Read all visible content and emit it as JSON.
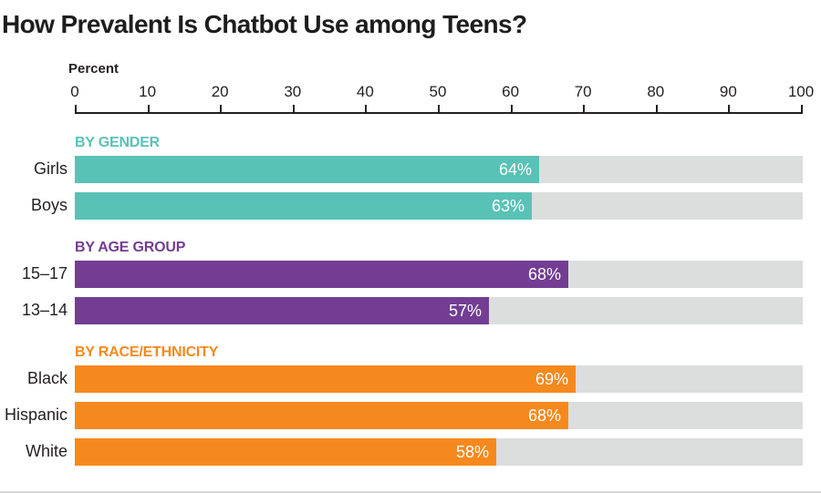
{
  "title": "How Prevalent Is Chatbot Use among Teens?",
  "colors": {
    "teal": "#59c2b6",
    "purple": "#733d93",
    "orange": "#f6891e",
    "track_gray": "#dcdddd",
    "axis_dark": "#231f20",
    "value_text": "#ffffff"
  },
  "chart_data": {
    "type": "bar",
    "orientation": "horizontal",
    "title": "How Prevalent Is Chatbot Use among Teens?",
    "xlabel": "Percent",
    "ylabel": "",
    "xlim": [
      0,
      100
    ],
    "tick_labels": [
      "0",
      "10",
      "20",
      "30",
      "40",
      "50",
      "60",
      "70",
      "80",
      "90",
      "100"
    ],
    "grid": false,
    "legend": false,
    "groups": [
      {
        "header": "BY GENDER",
        "color": "#59c2b6",
        "bars": [
          {
            "label": "Girls",
            "value": 64,
            "value_label": "64%"
          },
          {
            "label": "Boys",
            "value": 63,
            "value_label": "63%"
          }
        ]
      },
      {
        "header": "BY AGE GROUP",
        "color": "#733d93",
        "bars": [
          {
            "label": "15–17",
            "value": 68,
            "value_label": "68%"
          },
          {
            "label": "13–14",
            "value": 57,
            "value_label": "57%"
          }
        ]
      },
      {
        "header": "BY RACE/ETHNICITY",
        "color": "#f6891e",
        "bars": [
          {
            "label": "Black",
            "value": 69,
            "value_label": "69%"
          },
          {
            "label": "Hispanic",
            "value": 68,
            "value_label": "68%"
          },
          {
            "label": "White",
            "value": 58,
            "value_label": "58%"
          }
        ]
      }
    ]
  }
}
